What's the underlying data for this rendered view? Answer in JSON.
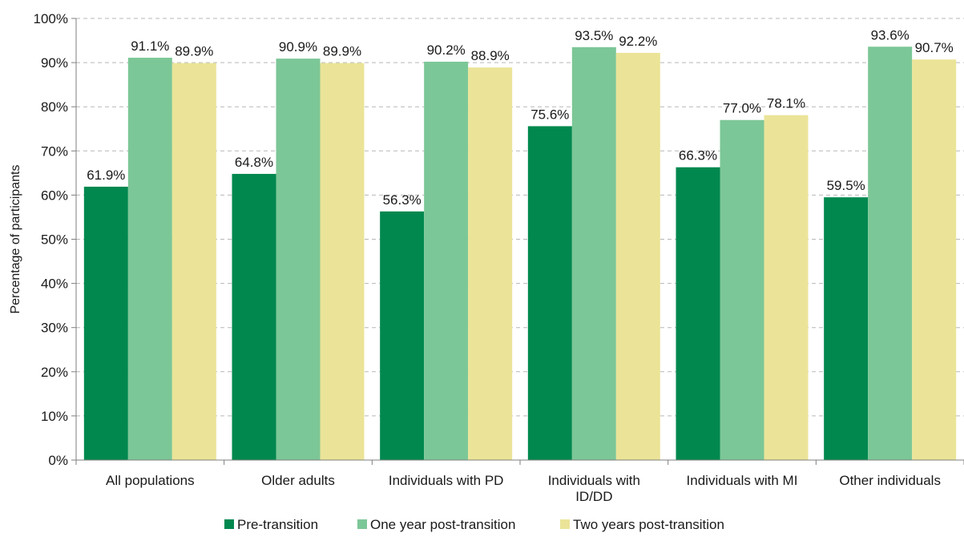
{
  "chart_data": {
    "type": "bar",
    "categories": [
      [
        "All populations"
      ],
      [
        "Older adults"
      ],
      [
        "Individuals with PD"
      ],
      [
        "Individuals with",
        "ID/DD"
      ],
      [
        "Individuals with MI"
      ],
      [
        "Other individuals"
      ]
    ],
    "series": [
      {
        "name": "Pre-transition",
        "color": "#00884f",
        "values": [
          61.9,
          64.8,
          56.3,
          75.6,
          66.3,
          59.5
        ]
      },
      {
        "name": "One year post-transition",
        "color": "#7cc797",
        "values": [
          91.1,
          90.9,
          90.2,
          93.5,
          77.0,
          93.6
        ]
      },
      {
        "name": "Two years post-transition",
        "color": "#ebe498",
        "values": [
          89.9,
          89.9,
          88.9,
          92.2,
          78.1,
          90.7
        ]
      }
    ],
    "data_labels": [
      [
        "61.9%",
        "91.1%",
        "89.9%"
      ],
      [
        "64.8%",
        "90.9%",
        "89.9%"
      ],
      [
        "56.3%",
        "90.2%",
        "88.9%"
      ],
      [
        "75.6%",
        "93.5%",
        "92.2%"
      ],
      [
        "66.3%",
        "77.0%",
        "78.1%"
      ],
      [
        "59.5%",
        "93.6%",
        "90.7%"
      ]
    ],
    "ylabel": "Percentage of participants",
    "xlabel": "",
    "ylim": [
      0,
      100
    ],
    "yticks": [
      0,
      10,
      20,
      30,
      40,
      50,
      60,
      70,
      80,
      90,
      100
    ],
    "ytick_labels": [
      "0%",
      "10%",
      "20%",
      "30%",
      "40%",
      "50%",
      "60%",
      "70%",
      "80%",
      "90%",
      "100%"
    ],
    "grid": "horizontal dashed",
    "legend_position": "bottom"
  }
}
